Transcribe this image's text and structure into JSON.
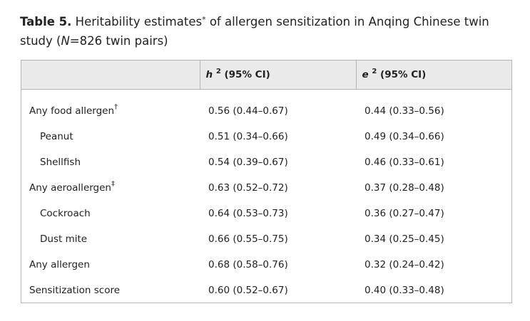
{
  "caption": {
    "label": "Table 5.",
    "text_before_mark": " Heritability estimates",
    "mark": "*",
    "text_after_mark": " of allergen sensitization in Anqing Chinese twin study (",
    "n_symbol": "N",
    "n_value": "=826 twin pairs)"
  },
  "table": {
    "headers": [
      {
        "label": ""
      },
      {
        "symbol": "h",
        "exponent": "2",
        "label": " (95% CI)"
      },
      {
        "symbol": "e",
        "exponent": "2",
        "label": " (95% CI)"
      }
    ],
    "rows": [
      {
        "name": "Any food allergen",
        "mark": "†",
        "indent": false,
        "h2": "0.56 (0.44–0.67)",
        "e2": "0.44 (0.33–0.56)"
      },
      {
        "name": "Peanut",
        "mark": "",
        "indent": true,
        "h2": "0.51 (0.34–0.66)",
        "e2": "0.49 (0.34–0.66)"
      },
      {
        "name": "Shellfish",
        "mark": "",
        "indent": true,
        "h2": "0.54 (0.39–0.67)",
        "e2": "0.46 (0.33–0.61)"
      },
      {
        "name": "Any aeroallergen",
        "mark": "‡",
        "indent": false,
        "h2": "0.63 (0.52–0.72)",
        "e2": "0.37 (0.28–0.48)"
      },
      {
        "name": "Cockroach",
        "mark": "",
        "indent": true,
        "h2": "0.64 (0.53–0.73)",
        "e2": "0.36 (0.27–0.47)"
      },
      {
        "name": "Dust mite",
        "mark": "",
        "indent": true,
        "h2": "0.66 (0.55–0.75)",
        "e2": "0.34 (0.25–0.45)"
      },
      {
        "name": "Any allergen",
        "mark": "",
        "indent": false,
        "h2": "0.68 (0.58–0.76)",
        "e2": "0.32 (0.24–0.42)"
      },
      {
        "name": "Sensitization score",
        "mark": "",
        "indent": false,
        "h2": "0.60 (0.52–0.67)",
        "e2": "0.40 (0.33–0.48)"
      }
    ]
  }
}
